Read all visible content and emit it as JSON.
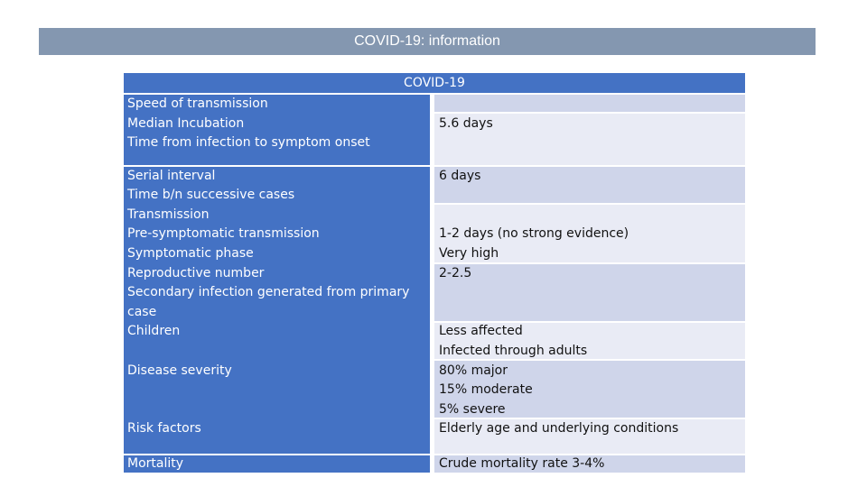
{
  "slide": {
    "title": "COVID-19: information"
  },
  "table": {
    "header": "COVID-19",
    "rows": [
      {
        "label": "Speed of transmission",
        "value": ""
      },
      {
        "label": "Median Incubation",
        "value": "5.6 days"
      },
      {
        "label": "Time from infection to symptom onset",
        "value": ""
      },
      {
        "label": "Serial interval",
        "value": "6 days"
      },
      {
        "label": "Time b/n successive cases",
        "value": ""
      },
      {
        "label": "Transmission",
        "value": ""
      },
      {
        "label": "Pre-symptomatic transmission",
        "value": "1-2 days (no strong evidence)"
      },
      {
        "label": "Symptomatic phase",
        "value": "Very high"
      },
      {
        "label": "Reproductive number",
        "value": "2-2.5"
      },
      {
        "label": "Secondary infection generated from primary",
        "value": ""
      },
      {
        "label": "case",
        "value": ""
      },
      {
        "label": "Children",
        "value": "Less affected"
      },
      {
        "label": "",
        "value": "Infected through adults"
      },
      {
        "label": "Disease severity",
        "value": "80% major"
      },
      {
        "label": "",
        "value": "15% moderate"
      },
      {
        "label": "",
        "value": "5% severe"
      },
      {
        "label": "Risk factors",
        "value": "Elderly age and underlying conditions"
      },
      {
        "label": "Mortality",
        "value": "Crude mortality rate 3-4%"
      }
    ]
  }
}
